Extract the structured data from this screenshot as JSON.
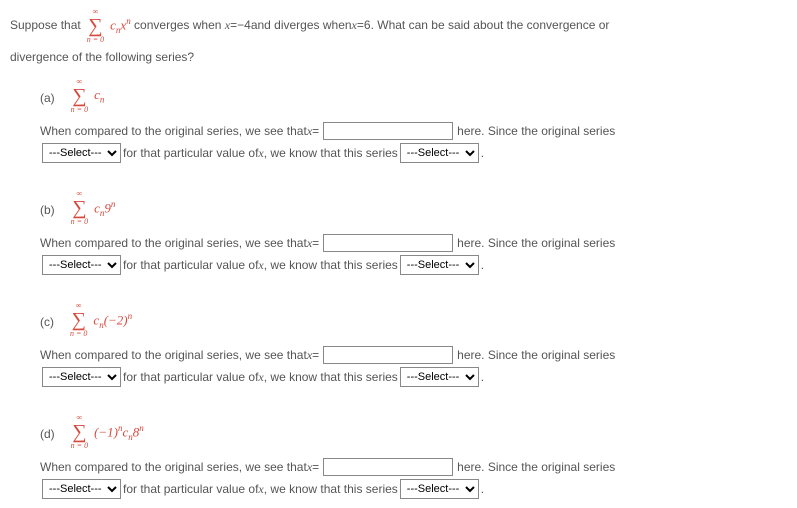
{
  "intro": {
    "before_sigma": "Suppose that",
    "after_sigma": "converges when",
    "eq1_lhs": "x",
    "eq1_eq": " = ",
    "eq1_rhs": "−4",
    "mid": " and diverges when ",
    "eq2_lhs": "x",
    "eq2_eq": " = ",
    "eq2_rhs": "6",
    "tail": ". What can be said about the convergence or",
    "line2": "divergence of the following series?",
    "sigma_top": "∞",
    "sigma_bot": "n = 0",
    "sigma_expr_base": "c",
    "sigma_expr_sub": "n",
    "sigma_expr_var": "x",
    "sigma_expr_sup": "n"
  },
  "common": {
    "sigma_top": "∞",
    "sigma_bot": "n = 0",
    "compare_pre": "When compared to the original series, we see that ",
    "x_equals_lhs": "x",
    "x_equals_eq": " = ",
    "compare_post": " here. Since the original series",
    "line2_mid": " for that particular value of ",
    "x_var": "x",
    "line2_post": ", we know that this series ",
    "period": " .",
    "select_placeholder": "---Select---"
  },
  "parts": {
    "a": {
      "label": "(a)",
      "expr_c": "c",
      "expr_sub": "n",
      "extra": ""
    },
    "b": {
      "label": "(b)",
      "expr_c": "c",
      "expr_sub": "n",
      "base": "9",
      "sup": "n"
    },
    "c": {
      "label": "(c)",
      "expr_c": "c",
      "expr_sub": "n",
      "paren": "(−2)",
      "sup": "n"
    },
    "d": {
      "label": "(d)",
      "pre": "(−1)",
      "presup": "n",
      "expr_c": "c",
      "expr_sub": "n",
      "base": "8",
      "sup": "n"
    }
  },
  "style": {
    "text_color": "#555555",
    "accent_color": "#d74b3f",
    "background": "#ffffff",
    "input_border": "#888888",
    "font_body": "Verdana",
    "font_math": "Times New Roman",
    "fontsize_body": 12,
    "fontsize_sigma": 20
  }
}
